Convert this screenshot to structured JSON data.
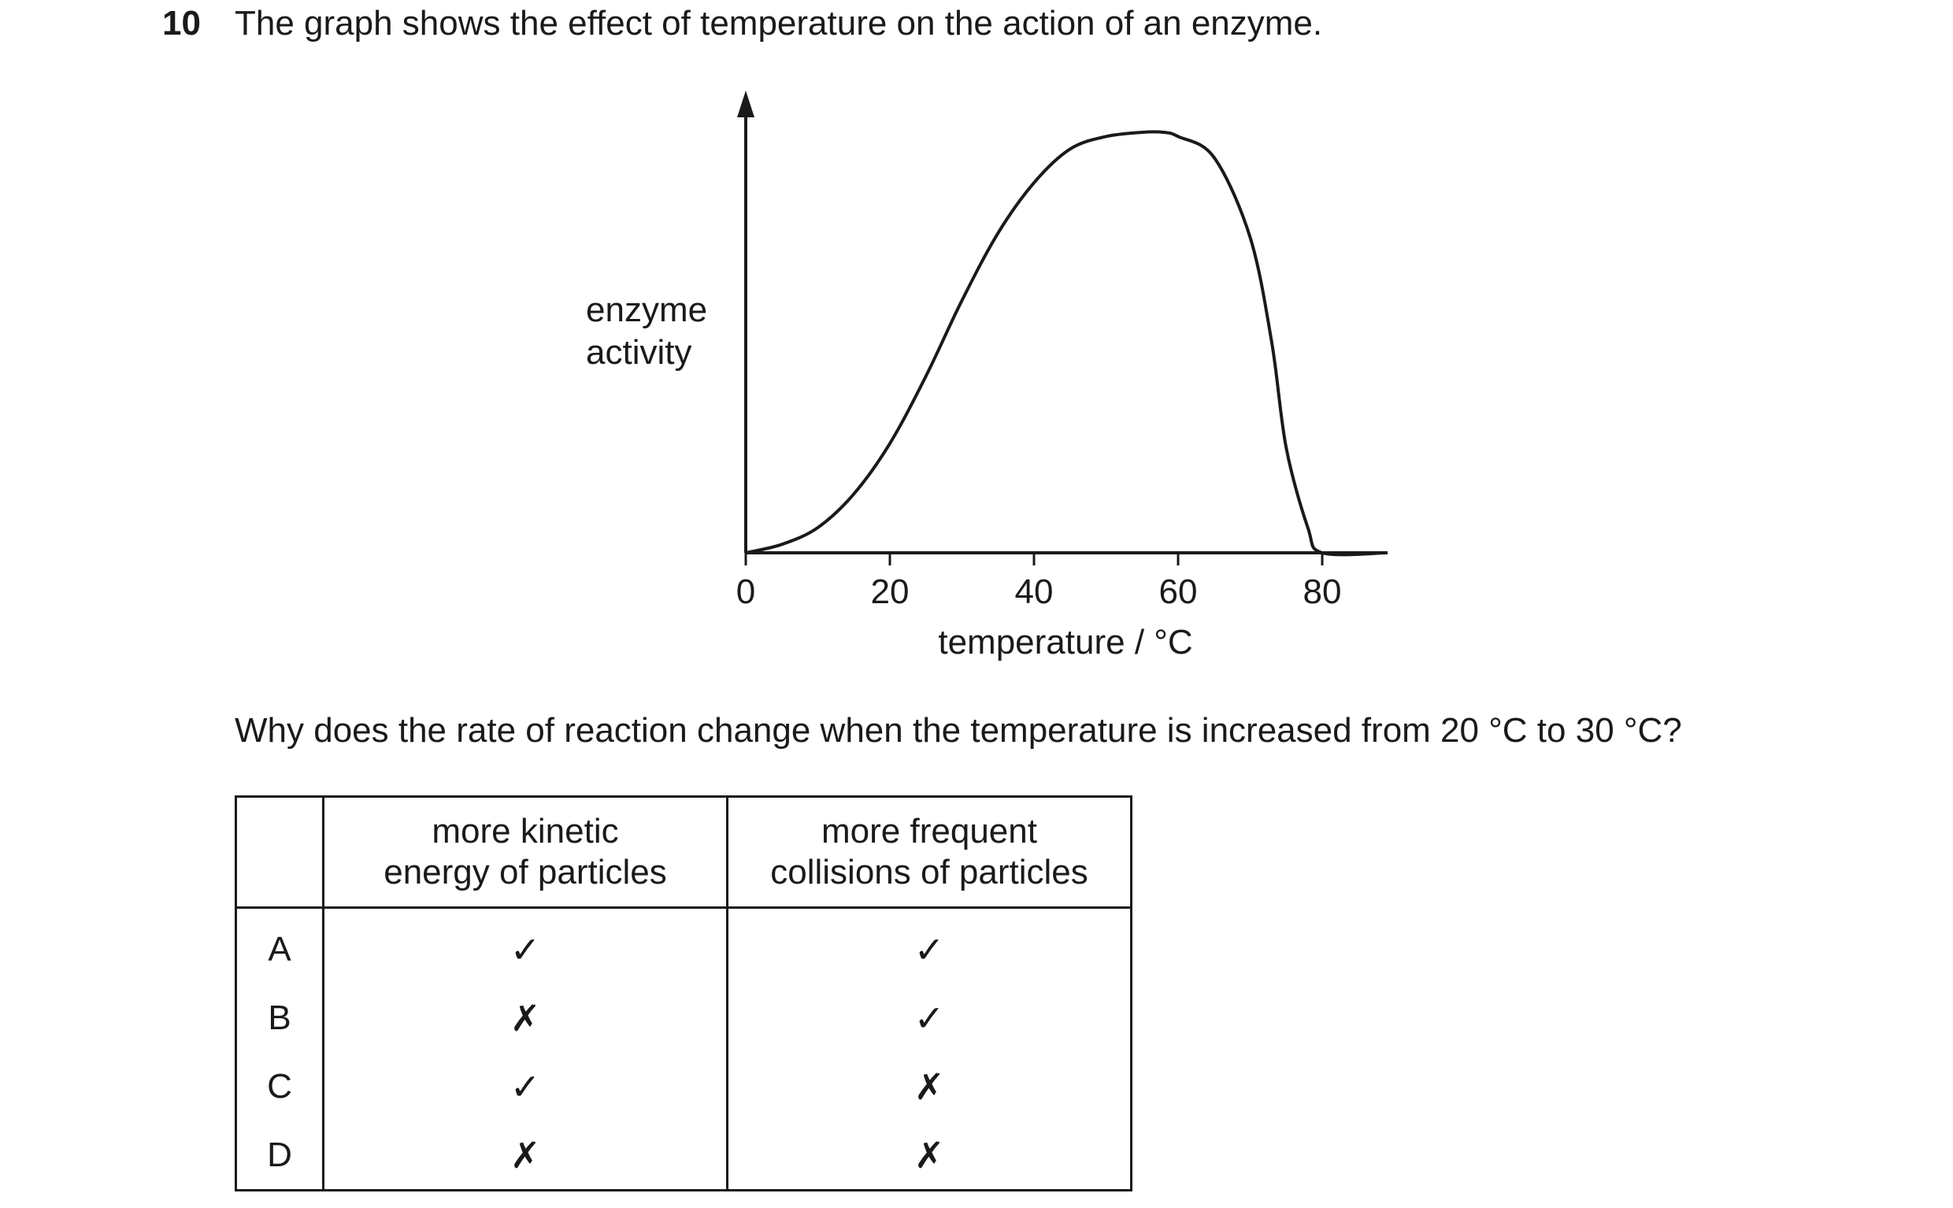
{
  "question": {
    "number": "10",
    "stem": "The graph shows the effect of temperature on the action of an enzyme.",
    "prompt": "Why does the rate of reaction change when the temperature is increased from 20 °C to 30 °C?"
  },
  "chart_data": {
    "type": "line",
    "ylabel_lines": [
      "enzyme",
      "activity"
    ],
    "xlabel": "temperature / °C",
    "xticks": [
      0,
      20,
      40,
      60,
      80
    ],
    "xlim": [
      0,
      89
    ],
    "ylim": [
      0,
      1
    ],
    "series": [
      {
        "x": [
          0,
          5,
          10,
          15,
          20,
          25,
          30,
          35,
          40,
          45,
          50,
          55,
          58,
          60,
          65,
          70,
          73,
          75,
          78,
          80,
          89
        ],
        "y": [
          0,
          0.02,
          0.06,
          0.14,
          0.26,
          0.42,
          0.6,
          0.76,
          0.88,
          0.96,
          0.99,
          1.0,
          1.0,
          0.99,
          0.94,
          0.75,
          0.5,
          0.25,
          0.06,
          0,
          0
        ]
      }
    ],
    "grid": false
  },
  "table": {
    "headers": [
      "",
      "more kinetic\nenergy of particles",
      "more frequent\ncollisions of particles"
    ],
    "header_lines": [
      [
        "more kinetic",
        "energy of particles"
      ],
      [
        "more frequent",
        "collisions of particles"
      ]
    ],
    "rows": [
      {
        "letter": "A",
        "kinetic": "✓",
        "collisions": "✓"
      },
      {
        "letter": "B",
        "kinetic": "✗",
        "collisions": "✓"
      },
      {
        "letter": "C",
        "kinetic": "✓",
        "collisions": "✗"
      },
      {
        "letter": "D",
        "kinetic": "✗",
        "collisions": "✗"
      }
    ]
  }
}
